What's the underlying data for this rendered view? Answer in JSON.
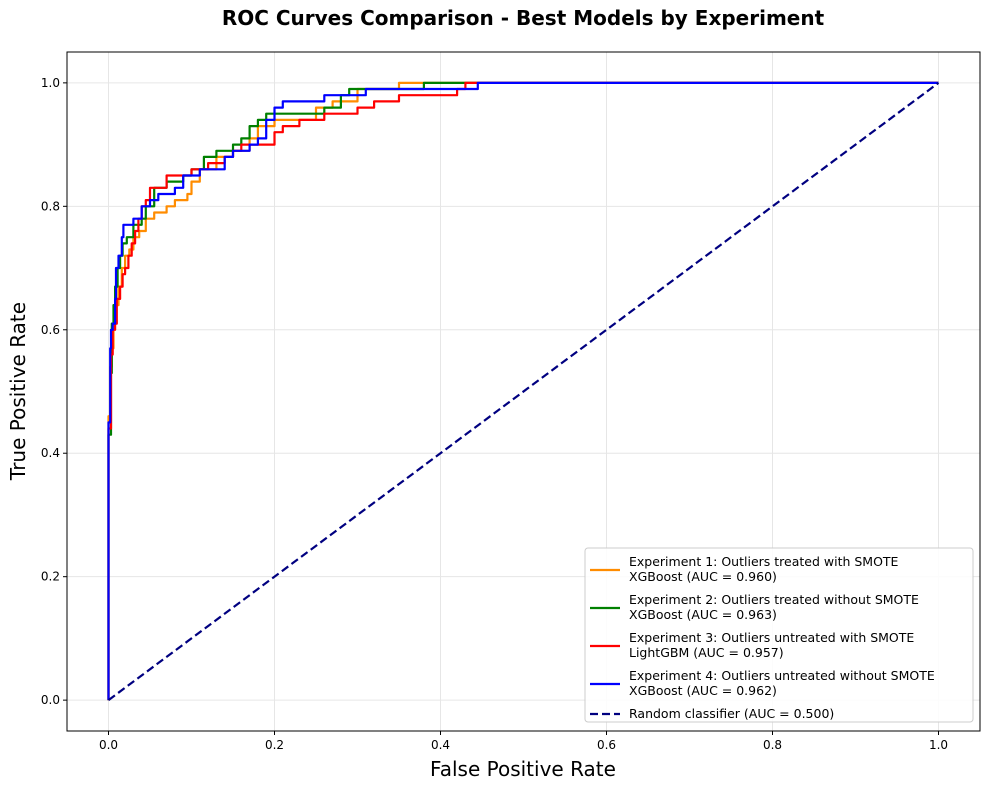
{
  "chart_data": {
    "type": "line",
    "title": "ROC Curves Comparison - Best Models by Experiment",
    "xlabel": "False Positive Rate",
    "ylabel": "True Positive Rate",
    "xlim": [
      -0.05,
      1.05
    ],
    "ylim": [
      -0.05,
      1.05
    ],
    "xticks": [
      "0.0",
      "0.2",
      "0.4",
      "0.6",
      "0.8",
      "1.0"
    ],
    "yticks": [
      "0.0",
      "0.2",
      "0.4",
      "0.6",
      "0.8",
      "1.0"
    ],
    "grid": true,
    "legend_position": "lower right",
    "series": [
      {
        "name": "Experiment 1: Outliers treated with SMOTE",
        "name_line2": "XGBoost (AUC = 0.960)",
        "color": "#ff8c00",
        "dash": "solid",
        "points": [
          [
            0,
            0
          ],
          [
            0,
            0.46
          ],
          [
            0.002,
            0.46
          ],
          [
            0.002,
            0.54
          ],
          [
            0.004,
            0.54
          ],
          [
            0.004,
            0.57
          ],
          [
            0.006,
            0.57
          ],
          [
            0.006,
            0.61
          ],
          [
            0.009,
            0.61
          ],
          [
            0.009,
            0.64
          ],
          [
            0.012,
            0.64
          ],
          [
            0.012,
            0.67
          ],
          [
            0.016,
            0.67
          ],
          [
            0.016,
            0.7
          ],
          [
            0.02,
            0.7
          ],
          [
            0.02,
            0.72
          ],
          [
            0.025,
            0.72
          ],
          [
            0.025,
            0.73
          ],
          [
            0.03,
            0.73
          ],
          [
            0.03,
            0.75
          ],
          [
            0.037,
            0.75
          ],
          [
            0.037,
            0.76
          ],
          [
            0.045,
            0.76
          ],
          [
            0.045,
            0.78
          ],
          [
            0.055,
            0.78
          ],
          [
            0.055,
            0.79
          ],
          [
            0.07,
            0.79
          ],
          [
            0.07,
            0.8
          ],
          [
            0.08,
            0.8
          ],
          [
            0.08,
            0.81
          ],
          [
            0.095,
            0.81
          ],
          [
            0.095,
            0.82
          ],
          [
            0.1,
            0.82
          ],
          [
            0.1,
            0.84
          ],
          [
            0.11,
            0.84
          ],
          [
            0.11,
            0.86
          ],
          [
            0.13,
            0.86
          ],
          [
            0.13,
            0.88
          ],
          [
            0.15,
            0.88
          ],
          [
            0.15,
            0.89
          ],
          [
            0.17,
            0.89
          ],
          [
            0.17,
            0.91
          ],
          [
            0.18,
            0.91
          ],
          [
            0.18,
            0.93
          ],
          [
            0.2,
            0.93
          ],
          [
            0.2,
            0.94
          ],
          [
            0.25,
            0.94
          ],
          [
            0.25,
            0.96
          ],
          [
            0.27,
            0.96
          ],
          [
            0.27,
            0.97
          ],
          [
            0.3,
            0.97
          ],
          [
            0.3,
            0.99
          ],
          [
            0.35,
            0.99
          ],
          [
            0.35,
            1.0
          ],
          [
            1.0,
            1.0
          ]
        ]
      },
      {
        "name": "Experiment 2: Outliers treated without SMOTE",
        "name_line2": "XGBoost (AUC = 0.963)",
        "color": "#008000",
        "dash": "solid",
        "points": [
          [
            0,
            0
          ],
          [
            0,
            0.43
          ],
          [
            0.003,
            0.43
          ],
          [
            0.003,
            0.53
          ],
          [
            0.004,
            0.53
          ],
          [
            0.004,
            0.61
          ],
          [
            0.006,
            0.61
          ],
          [
            0.006,
            0.64
          ],
          [
            0.008,
            0.64
          ],
          [
            0.008,
            0.67
          ],
          [
            0.011,
            0.67
          ],
          [
            0.011,
            0.7
          ],
          [
            0.014,
            0.7
          ],
          [
            0.014,
            0.72
          ],
          [
            0.017,
            0.72
          ],
          [
            0.017,
            0.74
          ],
          [
            0.022,
            0.74
          ],
          [
            0.022,
            0.75
          ],
          [
            0.03,
            0.75
          ],
          [
            0.03,
            0.77
          ],
          [
            0.04,
            0.77
          ],
          [
            0.04,
            0.78
          ],
          [
            0.045,
            0.78
          ],
          [
            0.045,
            0.8
          ],
          [
            0.055,
            0.8
          ],
          [
            0.055,
            0.83
          ],
          [
            0.07,
            0.83
          ],
          [
            0.07,
            0.84
          ],
          [
            0.09,
            0.84
          ],
          [
            0.09,
            0.85
          ],
          [
            0.1,
            0.85
          ],
          [
            0.1,
            0.86
          ],
          [
            0.115,
            0.86
          ],
          [
            0.115,
            0.88
          ],
          [
            0.13,
            0.88
          ],
          [
            0.13,
            0.89
          ],
          [
            0.15,
            0.89
          ],
          [
            0.15,
            0.9
          ],
          [
            0.16,
            0.9
          ],
          [
            0.16,
            0.91
          ],
          [
            0.17,
            0.91
          ],
          [
            0.17,
            0.93
          ],
          [
            0.18,
            0.93
          ],
          [
            0.18,
            0.94
          ],
          [
            0.19,
            0.94
          ],
          [
            0.19,
            0.95
          ],
          [
            0.22,
            0.95
          ],
          [
            0.22,
            0.95
          ],
          [
            0.26,
            0.95
          ],
          [
            0.26,
            0.96
          ],
          [
            0.28,
            0.96
          ],
          [
            0.28,
            0.98
          ],
          [
            0.29,
            0.98
          ],
          [
            0.29,
            0.99
          ],
          [
            0.38,
            0.99
          ],
          [
            0.38,
            1.0
          ],
          [
            1.0,
            1.0
          ]
        ]
      },
      {
        "name": "Experiment 3: Outliers untreated with SMOTE",
        "name_line2": "LightGBM (AUC = 0.957)",
        "color": "#ff0000",
        "dash": "solid",
        "points": [
          [
            0,
            0
          ],
          [
            0,
            0.44
          ],
          [
            0.003,
            0.44
          ],
          [
            0.003,
            0.56
          ],
          [
            0.005,
            0.56
          ],
          [
            0.005,
            0.6
          ],
          [
            0.008,
            0.6
          ],
          [
            0.008,
            0.61
          ],
          [
            0.01,
            0.61
          ],
          [
            0.01,
            0.65
          ],
          [
            0.014,
            0.65
          ],
          [
            0.014,
            0.67
          ],
          [
            0.017,
            0.67
          ],
          [
            0.017,
            0.69
          ],
          [
            0.02,
            0.69
          ],
          [
            0.02,
            0.7
          ],
          [
            0.024,
            0.7
          ],
          [
            0.024,
            0.72
          ],
          [
            0.028,
            0.72
          ],
          [
            0.028,
            0.74
          ],
          [
            0.032,
            0.74
          ],
          [
            0.032,
            0.76
          ],
          [
            0.036,
            0.76
          ],
          [
            0.036,
            0.78
          ],
          [
            0.04,
            0.78
          ],
          [
            0.04,
            0.8
          ],
          [
            0.045,
            0.8
          ],
          [
            0.045,
            0.81
          ],
          [
            0.05,
            0.81
          ],
          [
            0.05,
            0.83
          ],
          [
            0.07,
            0.83
          ],
          [
            0.07,
            0.85
          ],
          [
            0.1,
            0.85
          ],
          [
            0.1,
            0.86
          ],
          [
            0.12,
            0.86
          ],
          [
            0.12,
            0.87
          ],
          [
            0.14,
            0.87
          ],
          [
            0.14,
            0.88
          ],
          [
            0.15,
            0.88
          ],
          [
            0.15,
            0.89
          ],
          [
            0.16,
            0.89
          ],
          [
            0.16,
            0.9
          ],
          [
            0.2,
            0.9
          ],
          [
            0.2,
            0.92
          ],
          [
            0.21,
            0.92
          ],
          [
            0.21,
            0.93
          ],
          [
            0.23,
            0.93
          ],
          [
            0.23,
            0.94
          ],
          [
            0.26,
            0.94
          ],
          [
            0.26,
            0.95
          ],
          [
            0.3,
            0.95
          ],
          [
            0.3,
            0.96
          ],
          [
            0.32,
            0.96
          ],
          [
            0.32,
            0.97
          ],
          [
            0.35,
            0.97
          ],
          [
            0.35,
            0.98
          ],
          [
            0.42,
            0.98
          ],
          [
            0.42,
            0.99
          ],
          [
            0.43,
            0.99
          ],
          [
            0.43,
            1.0
          ],
          [
            1.0,
            1.0
          ]
        ]
      },
      {
        "name": "Experiment 4: Outliers untreated without SMOTE",
        "name_line2": "XGBoost (AUC = 0.962)",
        "color": "#0000ff",
        "dash": "solid",
        "points": [
          [
            0,
            0
          ],
          [
            0,
            0.45
          ],
          [
            0.002,
            0.45
          ],
          [
            0.002,
            0.57
          ],
          [
            0.003,
            0.57
          ],
          [
            0.003,
            0.6
          ],
          [
            0.005,
            0.6
          ],
          [
            0.005,
            0.61
          ],
          [
            0.008,
            0.61
          ],
          [
            0.008,
            0.65
          ],
          [
            0.009,
            0.65
          ],
          [
            0.009,
            0.7
          ],
          [
            0.012,
            0.7
          ],
          [
            0.012,
            0.72
          ],
          [
            0.016,
            0.72
          ],
          [
            0.016,
            0.75
          ],
          [
            0.018,
            0.75
          ],
          [
            0.018,
            0.77
          ],
          [
            0.03,
            0.77
          ],
          [
            0.03,
            0.78
          ],
          [
            0.04,
            0.78
          ],
          [
            0.04,
            0.8
          ],
          [
            0.05,
            0.8
          ],
          [
            0.05,
            0.81
          ],
          [
            0.06,
            0.81
          ],
          [
            0.06,
            0.82
          ],
          [
            0.08,
            0.82
          ],
          [
            0.08,
            0.83
          ],
          [
            0.09,
            0.83
          ],
          [
            0.09,
            0.85
          ],
          [
            0.11,
            0.85
          ],
          [
            0.11,
            0.86
          ],
          [
            0.14,
            0.86
          ],
          [
            0.14,
            0.88
          ],
          [
            0.15,
            0.88
          ],
          [
            0.15,
            0.89
          ],
          [
            0.17,
            0.89
          ],
          [
            0.17,
            0.9
          ],
          [
            0.18,
            0.9
          ],
          [
            0.18,
            0.91
          ],
          [
            0.19,
            0.91
          ],
          [
            0.19,
            0.94
          ],
          [
            0.2,
            0.94
          ],
          [
            0.2,
            0.96
          ],
          [
            0.21,
            0.96
          ],
          [
            0.21,
            0.97
          ],
          [
            0.26,
            0.97
          ],
          [
            0.26,
            0.98
          ],
          [
            0.31,
            0.98
          ],
          [
            0.31,
            0.99
          ],
          [
            0.44,
            0.99
          ],
          [
            0.44,
            0.99
          ],
          [
            0.445,
            0.99
          ],
          [
            0.445,
            1.0
          ],
          [
            1.0,
            1.0
          ]
        ]
      },
      {
        "name": "Random classifier (AUC = 0.500)",
        "color": "#000080",
        "dash": "dashed",
        "points": [
          [
            0,
            0
          ],
          [
            1,
            1
          ]
        ]
      }
    ]
  }
}
